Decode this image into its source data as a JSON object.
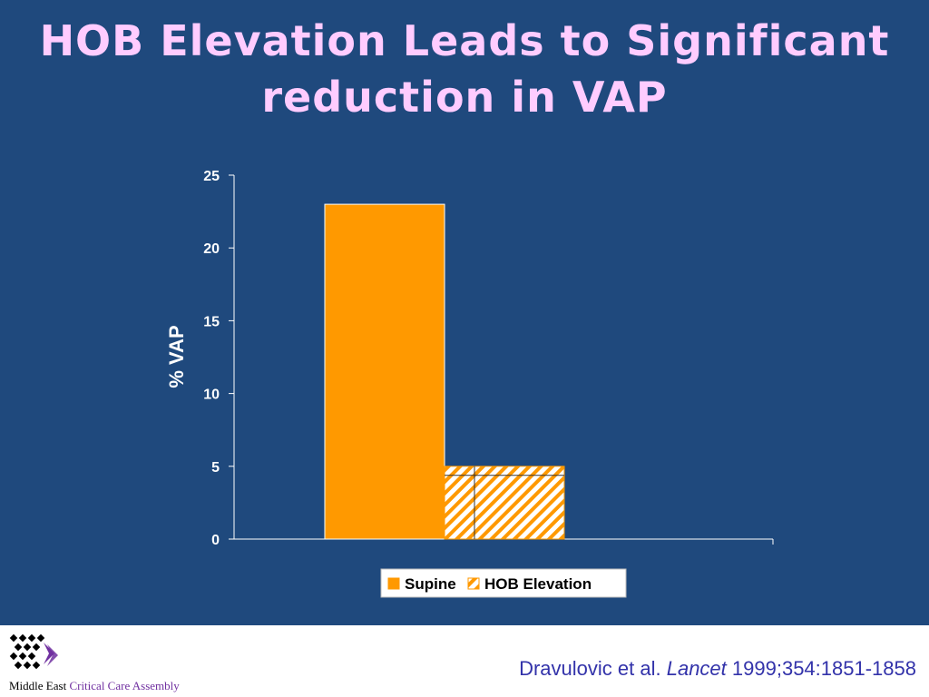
{
  "slide": {
    "title_line1": "HOB Elevation Leads to Significant",
    "title_line2": "reduction in VAP"
  },
  "chart_data": {
    "type": "bar",
    "categories": [
      ""
    ],
    "series": [
      {
        "name": "Supine",
        "values": [
          23
        ],
        "color": "#ff9900",
        "pattern": "solid"
      },
      {
        "name": "HOB Elevation",
        "values": [
          5
        ],
        "color": "#ff9900",
        "pattern": "diagonal-hatch"
      }
    ],
    "title": "",
    "xlabel": "",
    "ylabel": "% VAP",
    "ylim": [
      0,
      25
    ],
    "yticks": [
      0,
      5,
      10,
      15,
      20,
      25
    ],
    "grid": false,
    "legend_position": "bottom"
  },
  "footer": {
    "logo_text_part1": "Middle East",
    "logo_text_part2": "Critical Care Assembly",
    "logo_accent_color": "#7030a0",
    "citation_authors": "Dravulovic et al.",
    "citation_journal": "Lancet",
    "citation_ref": "1999;354:1851-1858"
  }
}
